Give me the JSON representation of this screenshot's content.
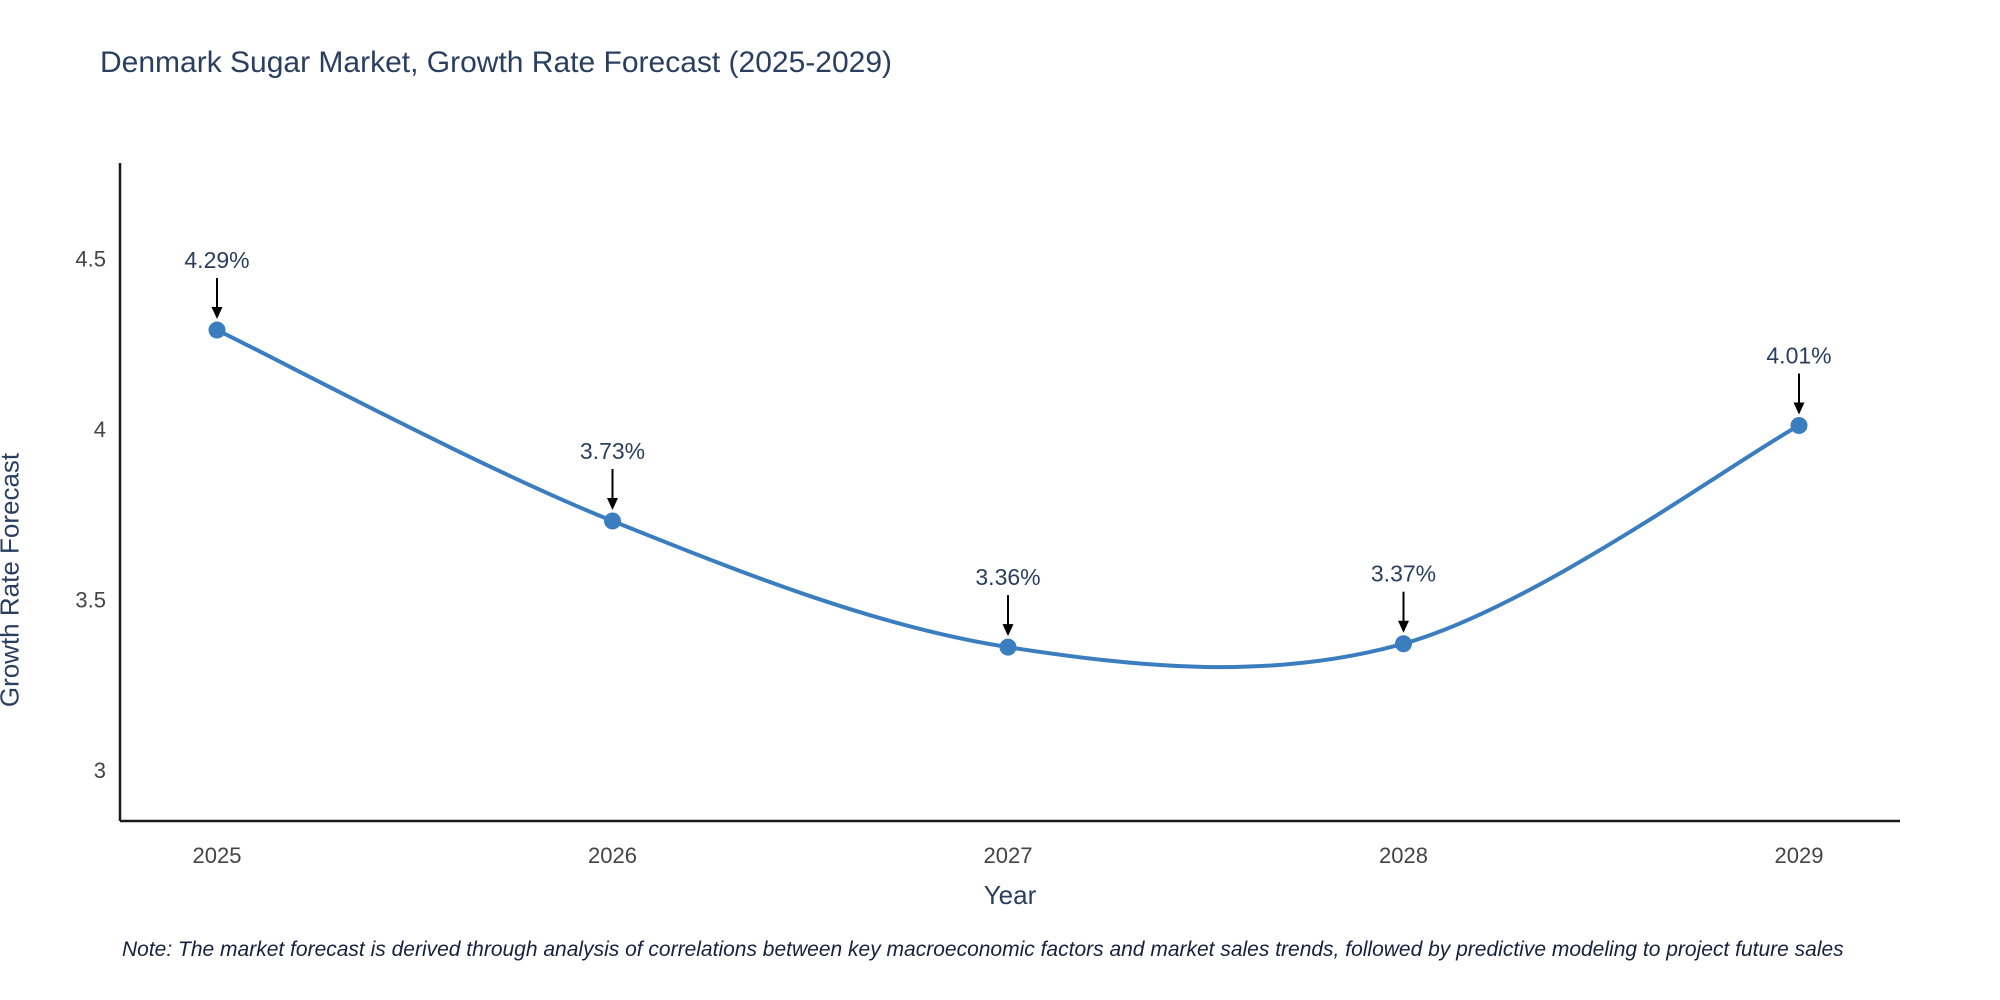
{
  "title": "Denmark Sugar Market, Growth Rate Forecast (2025-2029)",
  "note": "Note: The market forecast is derived through analysis of correlations between key macroeconomic factors and market sales trends, followed by predictive modeling to project future sales",
  "chart_data": {
    "type": "line",
    "line_shape": "spline",
    "x": [
      2025,
      2026,
      2027,
      2028,
      2029
    ],
    "series": [
      {
        "name": "Growth Rate Forecast",
        "values": [
          4.29,
          3.73,
          3.36,
          3.37,
          4.01
        ]
      }
    ],
    "point_labels": [
      "4.29%",
      "3.73%",
      "3.36%",
      "3.37%",
      "4.01%"
    ],
    "xlabel": "Year",
    "ylabel": "Growth Rate Forecast",
    "yticks": [
      3,
      3.5,
      4,
      4.5
    ],
    "ylim": [
      2.85,
      4.78
    ],
    "grid": false,
    "legend": "none",
    "colors": {
      "line": "#3a7ebf",
      "marker": "#3a7ebf",
      "axis": "#1a1a1a",
      "tick_text": "#444444",
      "title_text": "#2a3f5f",
      "annotation_text": "#2a3f5f",
      "arrow": "#000000"
    }
  }
}
